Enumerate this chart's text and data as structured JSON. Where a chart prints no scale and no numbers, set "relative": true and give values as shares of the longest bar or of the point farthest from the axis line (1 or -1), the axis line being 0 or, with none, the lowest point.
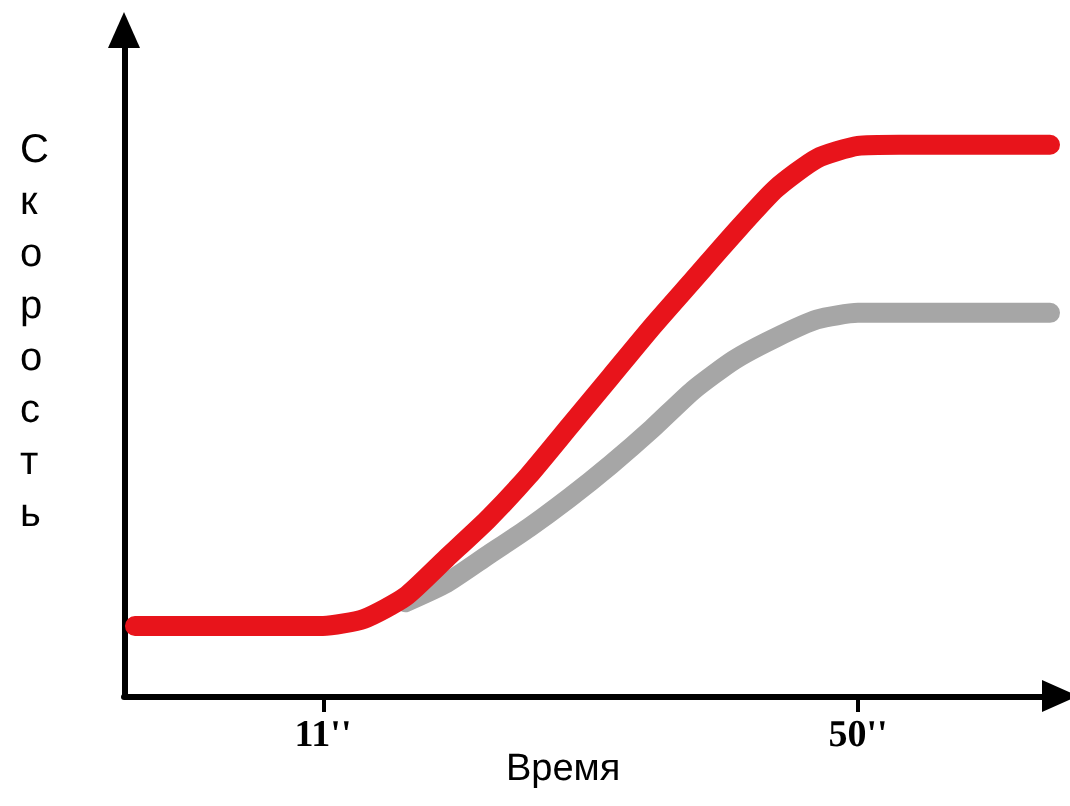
{
  "chart_data": {
    "type": "line",
    "relative": true,
    "xlabel": "Время",
    "ylabel": "Скорость",
    "xlim": [
      -3.5,
      64
    ],
    "xticks": [
      {
        "value": 11,
        "label": "11''"
      },
      {
        "value": 50,
        "label": "50''"
      }
    ],
    "grid": false,
    "marker": "none",
    "line_style": "solid",
    "series": [
      {
        "color": "#a6a6a6",
        "x": [
          17,
          20,
          23,
          26,
          29,
          32,
          35,
          38,
          41,
          44,
          47,
          50,
          53,
          64
        ],
        "values": [
          0.17,
          0.205,
          0.255,
          0.305,
          0.36,
          0.42,
          0.485,
          0.555,
          0.61,
          0.65,
          0.683,
          0.695,
          0.695,
          0.695
        ]
      },
      {
        "color": "#e8141b",
        "x": [
          -2.7,
          5,
          11,
          14,
          17,
          20,
          23,
          26,
          29,
          32,
          35,
          38,
          41,
          44,
          47,
          50,
          53,
          64
        ],
        "values": [
          0.127,
          0.127,
          0.127,
          0.14,
          0.18,
          0.25,
          0.32,
          0.4,
          0.49,
          0.58,
          0.67,
          0.755,
          0.84,
          0.92,
          0.975,
          0.998,
          1,
          1
        ]
      }
    ]
  }
}
